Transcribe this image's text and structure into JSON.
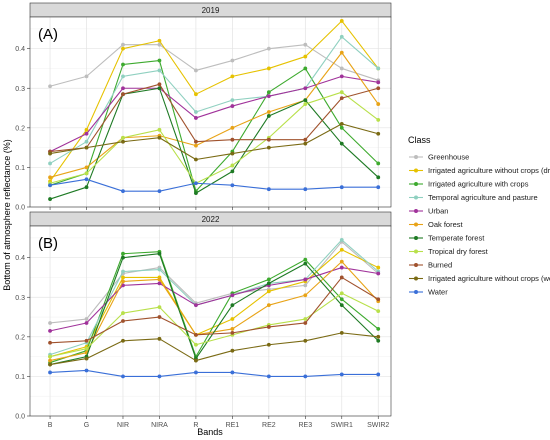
{
  "chart_data": {
    "type": "line",
    "ylabel": "Bottom of atmosphere reflectance (%)",
    "xlabel": "Bands",
    "categories": [
      "B",
      "G",
      "NIR",
      "NIRA",
      "R",
      "RE1",
      "RE2",
      "RE3",
      "SWIR1",
      "SWIR2"
    ],
    "ylim": [
      0,
      0.48
    ],
    "yticks": [
      0.0,
      0.1,
      0.2,
      0.3,
      0.4
    ],
    "grid": true,
    "legend_title": "Class",
    "legend_position": "right",
    "series_meta": [
      {
        "name": "Greenhouse",
        "color": "#BDBDBD"
      },
      {
        "name": "Irrigated agriculture without crops (dry)",
        "color": "#E6C200"
      },
      {
        "name": "Irrigated agriculture with crops",
        "color": "#3DAA2E"
      },
      {
        "name": "Temporal agriculture and pasture",
        "color": "#8FD0C0"
      },
      {
        "name": "Urban",
        "color": "#A0329A"
      },
      {
        "name": "Oak forest",
        "color": "#E8A317"
      },
      {
        "name": "Temperate forest",
        "color": "#1E7A24"
      },
      {
        "name": "Tropical dry forest",
        "color": "#B8E04A"
      },
      {
        "name": "Burned",
        "color": "#A0522D"
      },
      {
        "name": "Irrigated agriculture without crops (wet)",
        "color": "#7A6A14"
      },
      {
        "name": "Water",
        "color": "#3A6FD8"
      }
    ],
    "panels": [
      {
        "strip": "2019",
        "label": "(A)",
        "series": [
          {
            "name": "Greenhouse",
            "values": [
              0.305,
              0.33,
              0.41,
              0.41,
              0.345,
              0.37,
              0.4,
              0.41,
              0.35,
              0.32
            ]
          },
          {
            "name": "Irrigated agriculture without crops (dry)",
            "values": [
              0.065,
              0.195,
              0.4,
              0.42,
              0.285,
              0.33,
              0.35,
              0.38,
              0.47,
              0.35
            ]
          },
          {
            "name": "Irrigated agriculture with crops",
            "values": [
              0.055,
              0.085,
              0.36,
              0.37,
              0.04,
              0.14,
              0.29,
              0.35,
              0.2,
              0.11
            ]
          },
          {
            "name": "Temporal agriculture and pasture",
            "values": [
              0.11,
              0.165,
              0.33,
              0.345,
              0.24,
              0.27,
              0.28,
              0.3,
              0.43,
              0.35
            ]
          },
          {
            "name": "Urban",
            "values": [
              0.14,
              0.185,
              0.3,
              0.3,
              0.225,
              0.255,
              0.28,
              0.3,
              0.33,
              0.315
            ]
          },
          {
            "name": "Oak forest",
            "values": [
              0.075,
              0.1,
              0.175,
              0.18,
              0.155,
              0.2,
              0.24,
              0.27,
              0.39,
              0.26
            ]
          },
          {
            "name": "Temperate forest",
            "values": [
              0.02,
              0.05,
              0.285,
              0.3,
              0.035,
              0.09,
              0.23,
              0.27,
              0.16,
              0.075
            ]
          },
          {
            "name": "Tropical dry forest",
            "values": [
              0.06,
              0.085,
              0.175,
              0.195,
              0.06,
              0.105,
              0.175,
              0.26,
              0.29,
              0.22
            ]
          },
          {
            "name": "Burned",
            "values": [
              0.14,
              0.15,
              0.285,
              0.31,
              0.165,
              0.17,
              0.17,
              0.17,
              0.275,
              0.3
            ]
          },
          {
            "name": "Irrigated agriculture without crops (wet)",
            "values": [
              0.135,
              0.15,
              0.165,
              0.175,
              0.12,
              0.135,
              0.15,
              0.16,
              0.21,
              0.185
            ]
          },
          {
            "name": "Water",
            "values": [
              0.055,
              0.07,
              0.04,
              0.04,
              0.06,
              0.055,
              0.045,
              0.045,
              0.05,
              0.05
            ]
          }
        ]
      },
      {
        "strip": "2022",
        "label": "(B)",
        "series": [
          {
            "name": "Greenhouse",
            "values": [
              0.235,
              0.245,
              0.36,
              0.375,
              0.285,
              0.31,
              0.32,
              0.33,
              0.44,
              0.36
            ]
          },
          {
            "name": "Irrigated agriculture without crops (dry)",
            "values": [
              0.15,
              0.175,
              0.35,
              0.35,
              0.205,
              0.245,
              0.315,
              0.34,
              0.42,
              0.375
            ]
          },
          {
            "name": "Irrigated agriculture with crops",
            "values": [
              0.135,
              0.165,
              0.41,
              0.415,
              0.15,
              0.31,
              0.345,
              0.395,
              0.295,
              0.22
            ]
          },
          {
            "name": "Temporal agriculture and pasture",
            "values": [
              0.155,
              0.185,
              0.365,
              0.37,
              0.28,
              0.305,
              0.335,
              0.345,
              0.445,
              0.365
            ]
          },
          {
            "name": "Urban",
            "values": [
              0.215,
              0.235,
              0.33,
              0.335,
              0.28,
              0.305,
              0.33,
              0.345,
              0.375,
              0.36
            ]
          },
          {
            "name": "Oak forest",
            "values": [
              0.14,
              0.16,
              0.34,
              0.345,
              0.205,
              0.22,
              0.28,
              0.305,
              0.39,
              0.29
            ]
          },
          {
            "name": "Temperate forest",
            "values": [
              0.13,
              0.15,
              0.4,
              0.41,
              0.145,
              0.28,
              0.335,
              0.385,
              0.28,
              0.19
            ]
          },
          {
            "name": "Tropical dry forest",
            "values": [
              0.15,
              0.17,
              0.26,
              0.275,
              0.18,
              0.205,
              0.23,
              0.245,
              0.31,
              0.265
            ]
          },
          {
            "name": "Burned",
            "values": [
              0.185,
              0.19,
              0.24,
              0.25,
              0.205,
              0.21,
              0.225,
              0.235,
              0.35,
              0.295
            ]
          },
          {
            "name": "Irrigated agriculture without crops (wet)",
            "values": [
              0.13,
              0.145,
              0.19,
              0.195,
              0.14,
              0.165,
              0.18,
              0.19,
              0.21,
              0.2
            ]
          },
          {
            "name": "Water",
            "values": [
              0.11,
              0.115,
              0.1,
              0.1,
              0.11,
              0.11,
              0.1,
              0.1,
              0.105,
              0.105
            ]
          }
        ]
      }
    ]
  }
}
